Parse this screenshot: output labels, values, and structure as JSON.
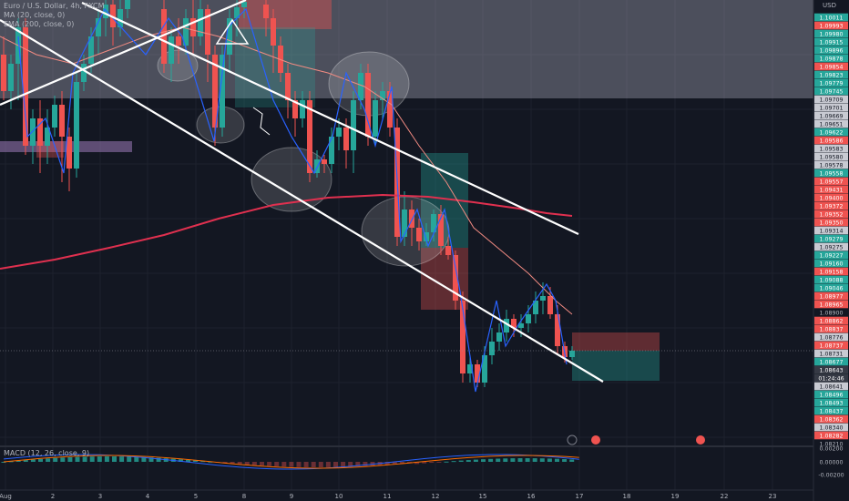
{
  "legend": {
    "symbol": "Euro / U.S. Dollar, 4h, FXCM",
    "ma": "MA (20, close, 0)",
    "ema": "EMA (200, close, 0)"
  },
  "currency": "USD",
  "macd_label": "MACD (12, 26, close, 9)",
  "x_ticks": [
    "Aug",
    "2",
    "3",
    "4",
    "5",
    "8",
    "9",
    "10",
    "11",
    "12",
    "15",
    "16",
    "17",
    "18",
    "19",
    "22",
    "23"
  ],
  "price_labels": [
    {
      "text": "1.10011",
      "kind": "green"
    },
    {
      "text": "1.09993",
      "kind": "red"
    },
    {
      "text": "1.09980",
      "kind": "green"
    },
    {
      "text": "1.09915",
      "kind": "green"
    },
    {
      "text": "1.09896",
      "kind": "green"
    },
    {
      "text": "1.09878",
      "kind": "green"
    },
    {
      "text": "1.09854",
      "kind": "red"
    },
    {
      "text": "1.09823",
      "kind": "green"
    },
    {
      "text": "1.09779",
      "kind": "green"
    },
    {
      "text": "1.09745",
      "kind": "green"
    },
    {
      "text": "1.09709",
      "kind": "gray"
    },
    {
      "text": "1.09701",
      "kind": "gray"
    },
    {
      "text": "1.09669",
      "kind": "gray"
    },
    {
      "text": "1.09651",
      "kind": "gray"
    },
    {
      "text": "1.09622",
      "kind": "green"
    },
    {
      "text": "1.09586",
      "kind": "red"
    },
    {
      "text": "1.09583",
      "kind": "gray"
    },
    {
      "text": "1.09580",
      "kind": "gray"
    },
    {
      "text": "1.09578",
      "kind": "gray"
    },
    {
      "text": "1.09558",
      "kind": "green"
    },
    {
      "text": "1.09557",
      "kind": "red"
    },
    {
      "text": "1.09431",
      "kind": "red"
    },
    {
      "text": "1.09400",
      "kind": "red"
    },
    {
      "text": "1.09372",
      "kind": "red"
    },
    {
      "text": "1.09352",
      "kind": "red"
    },
    {
      "text": "1.09350",
      "kind": "red"
    },
    {
      "text": "1.09314",
      "kind": "gray"
    },
    {
      "text": "1.09279",
      "kind": "green"
    },
    {
      "text": "1.09275",
      "kind": "gray"
    },
    {
      "text": "1.09227",
      "kind": "green"
    },
    {
      "text": "1.09160",
      "kind": "green"
    },
    {
      "text": "1.09158",
      "kind": "red"
    },
    {
      "text": "1.09088",
      "kind": "green"
    },
    {
      "text": "1.09046",
      "kind": "green"
    },
    {
      "text": "1.08977",
      "kind": "red"
    },
    {
      "text": "1.08965",
      "kind": "red"
    },
    {
      "text": "1.08900",
      "kind": "plain"
    },
    {
      "text": "1.08862",
      "kind": "red"
    },
    {
      "text": "1.08837",
      "kind": "red"
    },
    {
      "text": "1.08776",
      "kind": "gray"
    },
    {
      "text": "1.08737",
      "kind": "red"
    },
    {
      "text": "1.08731",
      "kind": "gray"
    },
    {
      "text": "1.08677",
      "kind": "green"
    },
    {
      "text": "1.08643",
      "kind": "dark"
    },
    {
      "text": "01:24:46",
      "kind": "dark"
    },
    {
      "text": "1.08641",
      "kind": "gray"
    },
    {
      "text": "1.08496",
      "kind": "green"
    },
    {
      "text": "1.08493",
      "kind": "green"
    },
    {
      "text": "1.08437",
      "kind": "green"
    },
    {
      "text": "1.08362",
      "kind": "red"
    },
    {
      "text": "1.08340",
      "kind": "gray"
    },
    {
      "text": "1.08282",
      "kind": "red"
    },
    {
      "text": "1.08210",
      "kind": "plain"
    }
  ],
  "macd_labels": [
    "0.00200",
    "0.00000",
    "-0.00200"
  ],
  "colors": {
    "up": "#26a69a",
    "down": "#ef5350",
    "ema": "#e0304f",
    "ma": "#f28b82",
    "trend": "#ffffff",
    "swing": "#2962ff"
  }
}
